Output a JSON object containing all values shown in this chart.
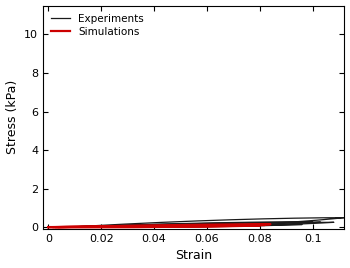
{
  "title": "",
  "xlabel": "Strain",
  "ylabel": "Stress (kPa)",
  "xlim": [
    -0.002,
    0.112
  ],
  "ylim": [
    -0.1,
    11.5
  ],
  "yticks": [
    0,
    2,
    4,
    6,
    8,
    10
  ],
  "xticks": [
    0,
    0.02,
    0.04,
    0.06,
    0.08,
    0.1
  ],
  "exp_color": "#1a1a1a",
  "sim_color": "#cc0000",
  "legend_labels": [
    "Experiments",
    "Simulations"
  ],
  "exp_lw": 0.9,
  "sim_lw": 1.6,
  "exp_curves": [
    {
      "smax": 0.108,
      "A": 600,
      "n": 3.5,
      "unload_shift": 0.005
    },
    {
      "smax": 0.103,
      "A": 580,
      "n": 3.4,
      "unload_shift": 0.006
    },
    {
      "smax": 0.1,
      "A": 560,
      "n": 3.3,
      "unload_shift": 0.007
    },
    {
      "smax": 0.096,
      "A": 620,
      "n": 3.6,
      "unload_shift": 0.004
    },
    {
      "smax": 0.112,
      "A": 540,
      "n": 3.2,
      "unload_shift": 0.008
    }
  ],
  "sim_curves": [
    {
      "smax": 0.082,
      "A": 700,
      "n": 3.5,
      "unload_shift": 0.003
    },
    {
      "smax": 0.08,
      "A": 720,
      "n": 3.6,
      "unload_shift": 0.002
    },
    {
      "smax": 0.084,
      "A": 680,
      "n": 3.4,
      "unload_shift": 0.004
    }
  ]
}
